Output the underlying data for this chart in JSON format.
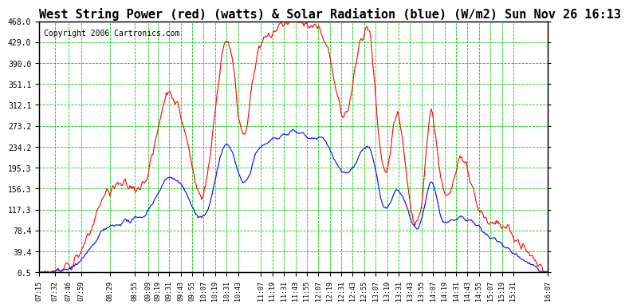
{
  "title": "West String Power (red) (watts) & Solar Radiation (blue) (W/m2) Sun Nov 26 16:13",
  "copyright": "Copyright 2006 Cartronics.com",
  "yticks": [
    0.5,
    39.4,
    78.4,
    117.3,
    156.3,
    195.3,
    234.2,
    273.2,
    312.1,
    351.1,
    390.0,
    429.0,
    468.0
  ],
  "ylim": [
    0.5,
    468.0
  ],
  "xtick_labels": [
    "07:15",
    "07:32",
    "07:46",
    "07:59",
    "08:29",
    "08:55",
    "09:09",
    "09:19",
    "09:31",
    "09:43",
    "09:55",
    "10:07",
    "10:19",
    "10:31",
    "10:43",
    "11:07",
    "11:19",
    "11:31",
    "11:43",
    "11:55",
    "12:07",
    "12:19",
    "12:31",
    "12:43",
    "12:55",
    "13:07",
    "13:19",
    "13:31",
    "13:43",
    "13:55",
    "14:07",
    "14:19",
    "14:31",
    "14:43",
    "14:55",
    "15:07",
    "15:19",
    "15:31",
    "16:07"
  ],
  "bg_color": "#ffffff",
  "grid_color": "#00cc00",
  "red_color": "#ff0000",
  "blue_color": "#0000ff",
  "title_fontsize": 11,
  "copyright_fontsize": 7
}
